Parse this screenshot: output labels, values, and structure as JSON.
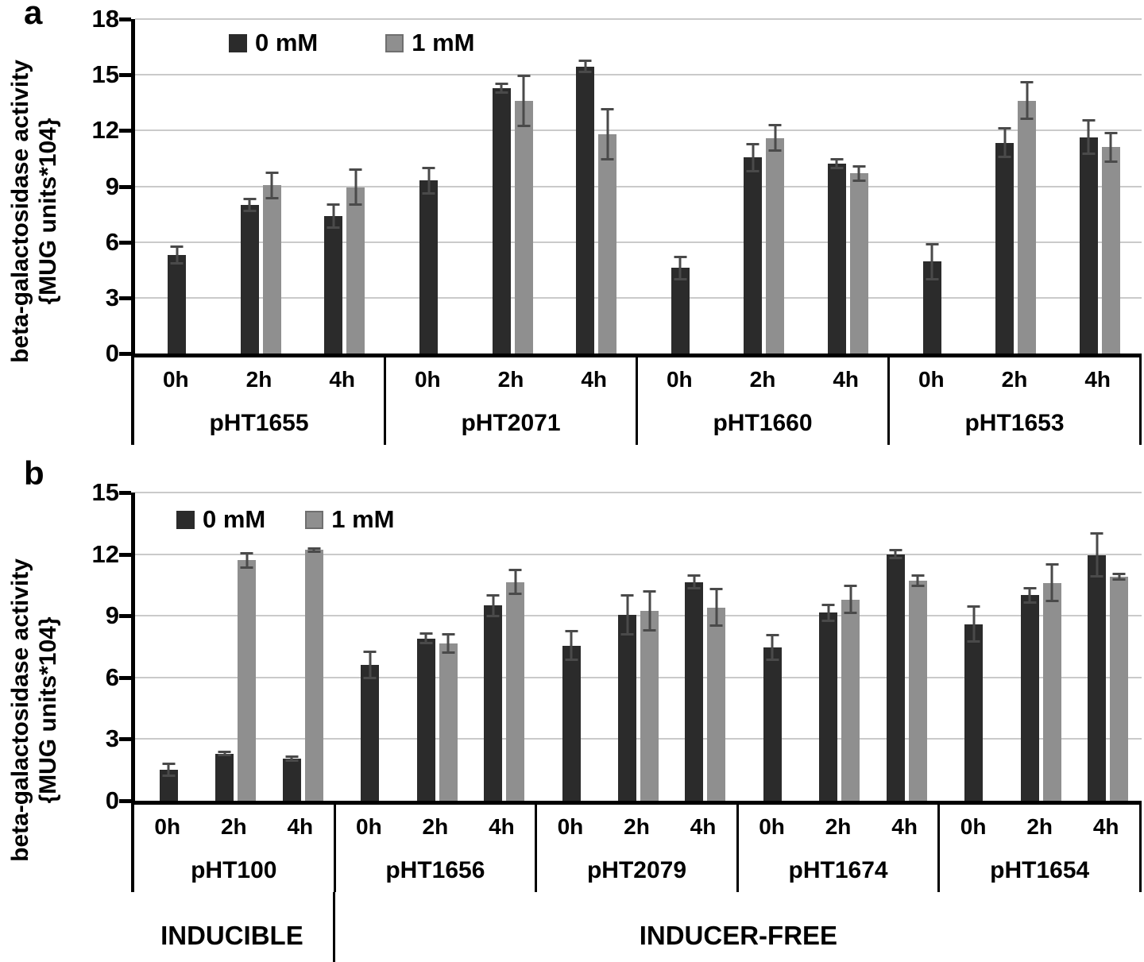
{
  "chart_data": [
    {
      "type": "bar",
      "panel_label": "a",
      "ylabel_line1": "beta-galactosidase activity",
      "ylabel_line2": "{MUG units*104}",
      "ylim": [
        0,
        18
      ],
      "ytick_step": 3,
      "ytick_labels": [
        "18",
        "15",
        "12",
        "9",
        "6",
        "3",
        "0"
      ],
      "grid": true,
      "legend_position": "top-left-inside",
      "legend": [
        {
          "label": "0 mM",
          "color": "#2b2b2b"
        },
        {
          "label": "1 mM",
          "color": "#8f8f8f"
        }
      ],
      "time_labels": [
        "0h",
        "2h",
        "4h"
      ],
      "groups": [
        "pHT1655",
        "pHT2071",
        "pHT1660",
        "pHT1653"
      ],
      "series": [
        {
          "name": "0 mM",
          "values": [
            [
              5.3,
              8.0,
              7.4
            ],
            [
              9.3,
              14.3,
              15.45
            ],
            [
              4.6,
              10.55,
              10.2
            ],
            [
              4.95,
              11.35,
              11.65
            ]
          ],
          "errors": [
            [
              0.5,
              0.4,
              0.7
            ],
            [
              0.75,
              0.3,
              0.35
            ],
            [
              0.65,
              0.8,
              0.3
            ],
            [
              1.0,
              0.85,
              0.95
            ]
          ]
        },
        {
          "name": "1 mM",
          "values": [
            [
              null,
              9.05,
              8.95
            ],
            [
              null,
              13.6,
              11.8
            ],
            [
              null,
              11.6,
              9.7
            ],
            [
              null,
              13.6,
              11.1
            ]
          ],
          "errors": [
            [
              null,
              0.75,
              1.0
            ],
            [
              null,
              1.4,
              1.4
            ],
            [
              null,
              0.75,
              0.45
            ],
            [
              null,
              1.05,
              0.85
            ]
          ]
        }
      ]
    },
    {
      "type": "bar",
      "panel_label": "b",
      "ylabel_line1": "beta-galactosidase activity",
      "ylabel_line2": "{MUG units*104}",
      "ylim": [
        0,
        15
      ],
      "ytick_step": 3,
      "ytick_labels": [
        "15",
        "12",
        "9",
        "6",
        "3",
        "0"
      ],
      "grid": true,
      "legend_position": "top-left-inside",
      "legend": [
        {
          "label": "0 mM",
          "color": "#2b2b2b"
        },
        {
          "label": "1 mM",
          "color": "#8f8f8f"
        }
      ],
      "time_labels": [
        "0h",
        "2h",
        "4h"
      ],
      "groups": [
        "pHT100",
        "pHT1656",
        "pHT2079",
        "pHT1674",
        "pHT1654"
      ],
      "series": [
        {
          "name": "0 mM",
          "values": [
            [
              1.5,
              2.3,
              2.05
            ],
            [
              6.6,
              7.9,
              9.5
            ],
            [
              7.55,
              9.05,
              10.65
            ],
            [
              7.45,
              9.15,
              12.0
            ],
            [
              8.6,
              10.0,
              11.95
            ]
          ],
          "errors": [
            [
              0.35,
              0.15,
              0.15
            ],
            [
              0.7,
              0.3,
              0.55
            ],
            [
              0.75,
              1.0,
              0.35
            ],
            [
              0.65,
              0.45,
              0.25
            ],
            [
              0.9,
              0.4,
              1.1
            ]
          ]
        },
        {
          "name": "1 mM",
          "values": [
            [
              null,
              11.7,
              12.2
            ],
            [
              null,
              7.65,
              10.65
            ],
            [
              null,
              9.25,
              9.4
            ],
            [
              null,
              9.8,
              10.7
            ],
            [
              null,
              10.6,
              10.9
            ]
          ],
          "errors": [
            [
              null,
              0.4,
              0.15
            ],
            [
              null,
              0.5,
              0.65
            ],
            [
              null,
              1.0,
              0.95
            ],
            [
              null,
              0.7,
              0.3
            ],
            [
              null,
              0.95,
              0.2
            ]
          ]
        }
      ],
      "category_bands": [
        {
          "label": "INDUCIBLE",
          "group_span": 1
        },
        {
          "label": "INDUCER-FREE",
          "group_span": 4
        }
      ]
    }
  ]
}
